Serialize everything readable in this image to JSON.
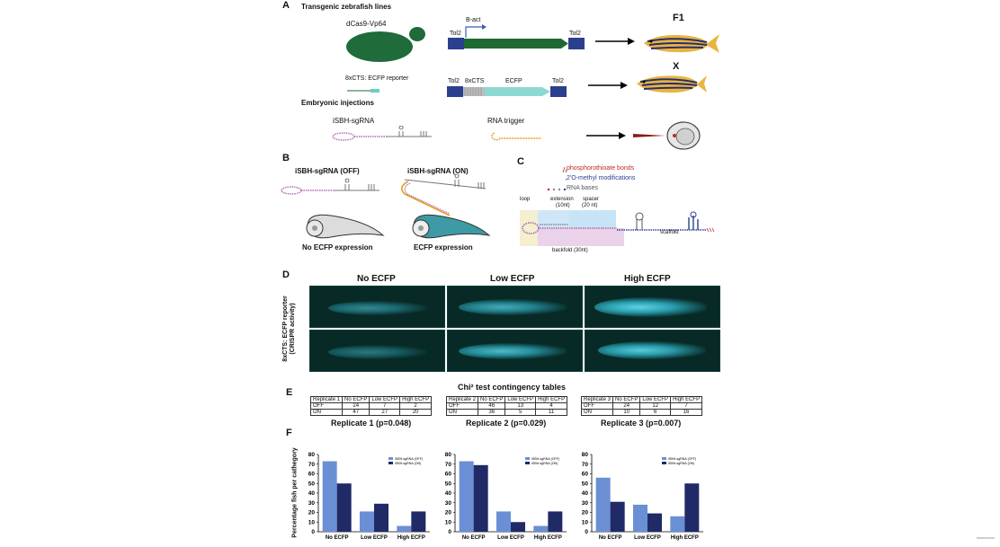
{
  "panel_a": {
    "label": "A",
    "section1": "Transgenic zebrafish lines",
    "section2": "Embryonic injections",
    "dcas_label": "dCas9-Vp64",
    "reporter_label": "8xCTS: ECFP reporter",
    "construct1": {
      "tol_left": "Tol2",
      "promoter": "B-act",
      "gene": "dCas9-Vp64",
      "tol_right": "Tol2"
    },
    "construct2": {
      "tol_left": "Tol2",
      "cts": "8xCTS",
      "gene": "ECFP",
      "tol_right": "Tol2"
    },
    "f1": "F1",
    "cross": "X",
    "isbh_label": "iSBH-sgRNA",
    "trigger_label": "RNA trigger"
  },
  "panel_b": {
    "label": "B",
    "off_title": "iSBH-sgRNA (OFF)",
    "on_title": "iSBH-sgRNA (ON)",
    "off_caption": "No ECFP expression",
    "on_caption": "ECFP expression"
  },
  "panel_c": {
    "label": "C",
    "legend": [
      "phosphorothioate bonds",
      "2'O-methyl  modifications",
      "RNA bases"
    ],
    "loop": "loop",
    "extension": "extension\n(10nt)",
    "extension_l1": "extension",
    "extension_l2": "(10nt)",
    "spacer_l1": "spacer",
    "spacer_l2": "(20 nt)",
    "backfold": "backfold (30nt)",
    "scaffold": "scaffold"
  },
  "panel_d": {
    "label": "D",
    "cols": [
      "No ECFP",
      "Low ECFP",
      "High ECFP"
    ],
    "ylabel1": "8xCTS: ECFP reporter",
    "ylabel2": "(CRISPR activity)"
  },
  "panel_e": {
    "label": "E",
    "title": "Chi² test contingency tables",
    "tables": [
      {
        "header": [
          "Replicate 1",
          "No ECFP",
          "Low ECFP",
          "High ECFP"
        ],
        "rows": [
          [
            "OFF",
            "24",
            "7",
            "2"
          ],
          [
            "ON",
            "47",
            "27",
            "20"
          ]
        ],
        "caption": "Replicate 1 (p=0.048)"
      },
      {
        "header": [
          "Replicate 2",
          "No ECFP",
          "Low ECFP",
          "High ECFP"
        ],
        "rows": [
          [
            "OFF",
            "46",
            "13",
            "4"
          ],
          [
            "ON",
            "36",
            "5",
            "11"
          ]
        ],
        "caption": "Replicate 2 (p=0.029)"
      },
      {
        "header": [
          "Replicate 3",
          "No ECFP",
          "Low ECFP",
          "High ECFP"
        ],
        "rows": [
          [
            "OFF",
            "24",
            "12",
            "7"
          ],
          [
            "ON",
            "10",
            "6",
            "16"
          ]
        ],
        "caption": "Replicate 3 (p=0.007)"
      }
    ]
  },
  "panel_f": {
    "label": "F",
    "ylabel": "Percentage fish per cathegory"
  },
  "chart_data": [
    {
      "type": "bar",
      "categories": [
        "No ECFP",
        "Low ECFP",
        "High ECFP"
      ],
      "series": [
        {
          "name": "iSBH-sgRNA (OFF)",
          "values": [
            73,
            21,
            6
          ]
        },
        {
          "name": "iSBH-sgRNA (ON)",
          "values": [
            50,
            29,
            21
          ]
        }
      ],
      "ylim": [
        0,
        80
      ],
      "yticks": [
        0,
        10,
        20,
        30,
        40,
        50,
        60,
        70,
        80
      ],
      "colors": [
        "#6b8fd4",
        "#1f2a66"
      ],
      "legend": "top-right"
    },
    {
      "type": "bar",
      "categories": [
        "No ECFP",
        "Low ECFP",
        "High ECFP"
      ],
      "series": [
        {
          "name": "iSBH-sgRNA (OFF)",
          "values": [
            73,
            21,
            6
          ]
        },
        {
          "name": "iSBH-sgRNA (ON)",
          "values": [
            69,
            10,
            21
          ]
        }
      ],
      "ylim": [
        0,
        80
      ],
      "yticks": [
        0,
        10,
        20,
        30,
        40,
        50,
        60,
        70,
        80
      ],
      "colors": [
        "#6b8fd4",
        "#1f2a66"
      ],
      "legend": "top-right"
    },
    {
      "type": "bar",
      "categories": [
        "No ECFP",
        "Low ECFP",
        "High ECFP"
      ],
      "series": [
        {
          "name": "iSBH-sgRNA (OFF)",
          "values": [
            56,
            28,
            16
          ]
        },
        {
          "name": "iSBH-sgRNA (ON)",
          "values": [
            31,
            19,
            50
          ]
        }
      ],
      "ylim": [
        0,
        80
      ],
      "yticks": [
        0,
        10,
        20,
        30,
        40,
        50,
        60,
        70,
        80
      ],
      "colors": [
        "#6b8fd4",
        "#1f2a66"
      ],
      "legend": "top-right"
    }
  ]
}
